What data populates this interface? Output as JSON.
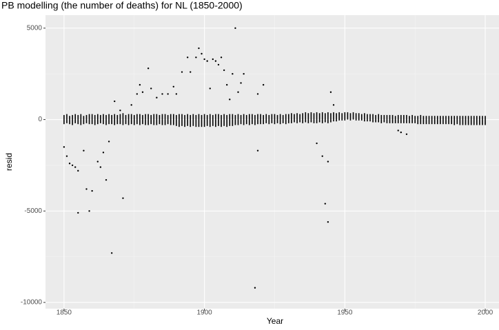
{
  "chart_data": {
    "type": "scatter",
    "title": "PB modelling (the number of deaths) for NL (1850-2000)",
    "x_label": "Year",
    "y_label": "resid",
    "xlim": [
      1843.4,
      2004.9
    ],
    "ylim": [
      -10340,
      5710
    ],
    "xticks": [
      1850,
      1900,
      1950,
      2000
    ],
    "yticks": [
      -10000,
      -5000,
      0,
      5000
    ],
    "grid": true,
    "color": "#000000",
    "band": {
      "x": [
        1850,
        1851,
        1852,
        1853,
        1854,
        1855,
        1856,
        1857,
        1858,
        1859,
        1860,
        1861,
        1862,
        1863,
        1864,
        1865,
        1866,
        1867,
        1868,
        1869,
        1870,
        1871,
        1872,
        1873,
        1874,
        1875,
        1876,
        1877,
        1878,
        1879,
        1880,
        1881,
        1882,
        1883,
        1884,
        1885,
        1886,
        1887,
        1888,
        1889,
        1890,
        1891,
        1892,
        1893,
        1894,
        1895,
        1896,
        1897,
        1898,
        1899,
        1900,
        1901,
        1902,
        1903,
        1904,
        1905,
        1906,
        1907,
        1908,
        1909,
        1910,
        1911,
        1912,
        1913,
        1914,
        1915,
        1916,
        1917,
        1918,
        1919,
        1920,
        1921,
        1922,
        1923,
        1924,
        1925,
        1926,
        1927,
        1928,
        1929,
        1930,
        1931,
        1932,
        1933,
        1934,
        1935,
        1936,
        1937,
        1938,
        1939,
        1940,
        1941,
        1942,
        1943,
        1944,
        1945,
        1946,
        1947,
        1948,
        1949,
        1950,
        1951,
        1952,
        1953,
        1954,
        1955,
        1956,
        1957,
        1958,
        1959,
        1960,
        1961,
        1962,
        1963,
        1964,
        1965,
        1966,
        1967,
        1968,
        1969,
        1970,
        1971,
        1972,
        1973,
        1974,
        1975,
        1976,
        1977,
        1978,
        1979,
        1980,
        1981,
        1982,
        1983,
        1984,
        1985,
        1986,
        1987,
        1988,
        1989,
        1990,
        1991,
        1992,
        1993,
        1994,
        1995,
        1996,
        1997,
        1998,
        1999,
        2000
      ],
      "high": [
        250,
        300,
        200,
        250,
        300,
        250,
        300,
        200,
        250,
        300,
        300,
        250,
        300,
        250,
        300,
        250,
        300,
        250,
        300,
        250,
        300,
        350,
        250,
        300,
        300,
        250,
        300,
        300,
        250,
        300,
        300,
        250,
        300,
        300,
        250,
        300,
        300,
        250,
        300,
        300,
        250,
        300,
        300,
        250,
        300,
        250,
        300,
        250,
        300,
        250,
        300,
        250,
        300,
        250,
        300,
        300,
        250,
        300,
        250,
        300,
        300,
        250,
        300,
        250,
        300,
        250,
        300,
        300,
        250,
        300,
        300,
        250,
        300,
        250,
        300,
        300,
        250,
        300,
        250,
        300,
        300,
        350,
        300,
        350,
        300,
        350,
        400,
        350,
        400,
        350,
        400,
        350,
        400,
        350,
        400,
        350,
        400,
        350,
        400,
        350,
        400,
        400,
        350,
        400,
        350,
        350,
        300,
        350,
        300,
        300,
        300,
        250,
        300,
        250,
        250,
        250,
        250,
        250,
        200,
        250,
        250,
        250,
        250,
        200,
        250,
        200,
        200,
        250,
        200,
        200,
        200,
        200,
        200,
        200,
        200,
        200,
        200,
        200,
        200,
        200,
        200,
        200,
        200,
        200,
        200,
        200,
        200,
        200,
        200,
        200,
        200
      ],
      "low": [
        -250,
        -200,
        -250,
        -300,
        -200,
        -250,
        -300,
        -250,
        -200,
        -250,
        -250,
        -300,
        -250,
        -200,
        -250,
        -300,
        -250,
        -250,
        -300,
        -250,
        -250,
        -300,
        -250,
        -300,
        -250,
        -300,
        -250,
        -300,
        -250,
        -300,
        -300,
        -250,
        -300,
        -300,
        -250,
        -300,
        -300,
        -250,
        -300,
        -300,
        -350,
        -400,
        -350,
        -400,
        -350,
        -400,
        -350,
        -400,
        -400,
        -400,
        -400,
        -350,
        -400,
        -350,
        -400,
        -350,
        -400,
        -350,
        -400,
        -350,
        -350,
        -300,
        -300,
        -250,
        -300,
        -250,
        -300,
        -250,
        -300,
        -250,
        -250,
        -250,
        -200,
        -250,
        -200,
        -250,
        -200,
        -250,
        -200,
        -250,
        -200,
        -200,
        -150,
        -200,
        -150,
        -200,
        -150,
        -200,
        -150,
        -200,
        -200,
        -150,
        -200,
        -150,
        -200,
        -150,
        -100,
        -100,
        -50,
        -50,
        -50,
        0,
        -50,
        0,
        -50,
        -50,
        -50,
        -100,
        -100,
        -100,
        -150,
        -150,
        -150,
        -200,
        -150,
        -200,
        -200,
        -200,
        -200,
        -200,
        -200,
        -200,
        -200,
        -200,
        -200,
        -200,
        -250,
        -250,
        -250,
        -250,
        -250,
        -250,
        -250,
        -250,
        -250,
        -250,
        -250,
        -250,
        -250,
        -300,
        -250,
        -300,
        -300,
        -300,
        -300,
        -300,
        -300,
        -300,
        -300,
        -300,
        -300
      ]
    },
    "x": [
      1850,
      1851,
      1852,
      1853,
      1854,
      1855,
      1855,
      1857,
      1858,
      1859,
      1860,
      1862,
      1863,
      1864,
      1865,
      1866,
      1867,
      1871,
      1868,
      1870,
      1874,
      1876,
      1877,
      1878,
      1880,
      1881,
      1883,
      1885,
      1887,
      1889,
      1890,
      1892,
      1894,
      1895,
      1897,
      1898,
      1899,
      1900,
      1901,
      1902,
      1903,
      1904,
      1905,
      1906,
      1907,
      1908,
      1909,
      1910,
      1911,
      1912,
      1913,
      1914,
      1918,
      1919,
      1919,
      1921,
      1940,
      1942,
      1943,
      1944,
      1944,
      1945,
      1946,
      1969,
      1970,
      1972
    ],
    "y": [
      -1500,
      -2000,
      -2400,
      -2500,
      -2600,
      -5100,
      -2800,
      -1700,
      -3800,
      -5000,
      -3900,
      -2300,
      -2600,
      -1800,
      -3300,
      -1200,
      -7300,
      -4300,
      1000,
      500,
      800,
      1400,
      1900,
      1500,
      2800,
      1700,
      1200,
      1400,
      1400,
      1800,
      1400,
      2600,
      3400,
      2600,
      3400,
      3900,
      3600,
      3300,
      3200,
      1700,
      3300,
      3200,
      3000,
      3400,
      2700,
      1900,
      1100,
      2500,
      5000,
      1500,
      2000,
      2500,
      -9200,
      -1700,
      1400,
      1900,
      -1300,
      -2000,
      -4600,
      -5600,
      -2300,
      1500,
      800,
      -600,
      -700,
      -800
    ]
  }
}
